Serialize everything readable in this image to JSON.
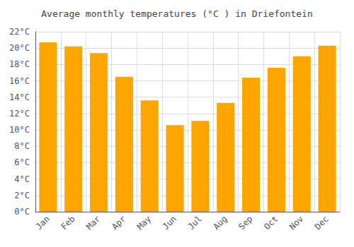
{
  "chart_data": {
    "type": "bar",
    "title": "Average monthly temperatures (°C ) in Driefontein",
    "categories": [
      "Jan",
      "Feb",
      "Mar",
      "Apr",
      "May",
      "Jun",
      "Jul",
      "Aug",
      "Sep",
      "Oct",
      "Nov",
      "Dec"
    ],
    "values": [
      20.7,
      20.2,
      19.4,
      16.5,
      13.6,
      10.6,
      11.1,
      13.3,
      16.4,
      17.6,
      19.0,
      20.3
    ],
    "color": "#FFA500",
    "ylim": [
      0,
      22
    ],
    "yticks": [
      {
        "value": 0,
        "label": "0°C"
      },
      {
        "value": 2,
        "label": "2°C"
      },
      {
        "value": 4,
        "label": "4°C"
      },
      {
        "value": 6,
        "label": "6°C"
      },
      {
        "value": 8,
        "label": "8°C"
      },
      {
        "value": 10,
        "label": "10°C"
      },
      {
        "value": 12,
        "label": "12°C"
      },
      {
        "value": 14,
        "label": "14°C"
      },
      {
        "value": 16,
        "label": "16°C"
      },
      {
        "value": 18,
        "label": "18°C"
      },
      {
        "value": 20,
        "label": "20°C"
      },
      {
        "value": 22,
        "label": "22°C"
      }
    ],
    "grid": true
  }
}
